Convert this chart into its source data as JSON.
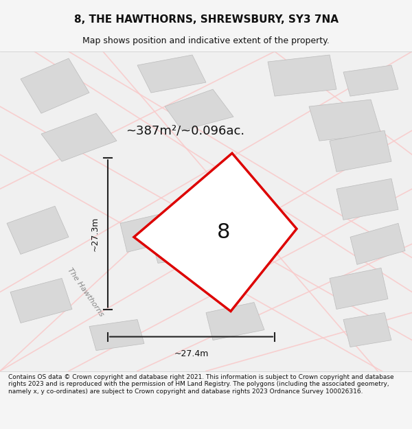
{
  "title": "8, THE HAWTHORNS, SHREWSBURY, SY3 7NA",
  "subtitle": "Map shows position and indicative extent of the property.",
  "footer": "Contains OS data © Crown copyright and database right 2021. This information is subject to Crown copyright and database rights 2023 and is reproduced with the permission of HM Land Registry. The polygons (including the associated geometry, namely x, y co-ordinates) are subject to Crown copyright and database rights 2023 Ordnance Survey 100026316.",
  "area_label": "~387m²/~0.096ac.",
  "plot_number": "8",
  "dim_h": "~27.3m",
  "dim_w": "~27.4m",
  "street_label": "The Hawthorns",
  "bg_color": "#f5f5f5",
  "map_bg": "#f0f0f0",
  "plot_outline_color": "#dd0000",
  "plot_fill_color": "#ffffff",
  "building_color": "#d8d8d8",
  "road_color": "#f9c9c9",
  "dim_line_color": "#222222",
  "title_color": "#111111",
  "footer_color": "#111111"
}
